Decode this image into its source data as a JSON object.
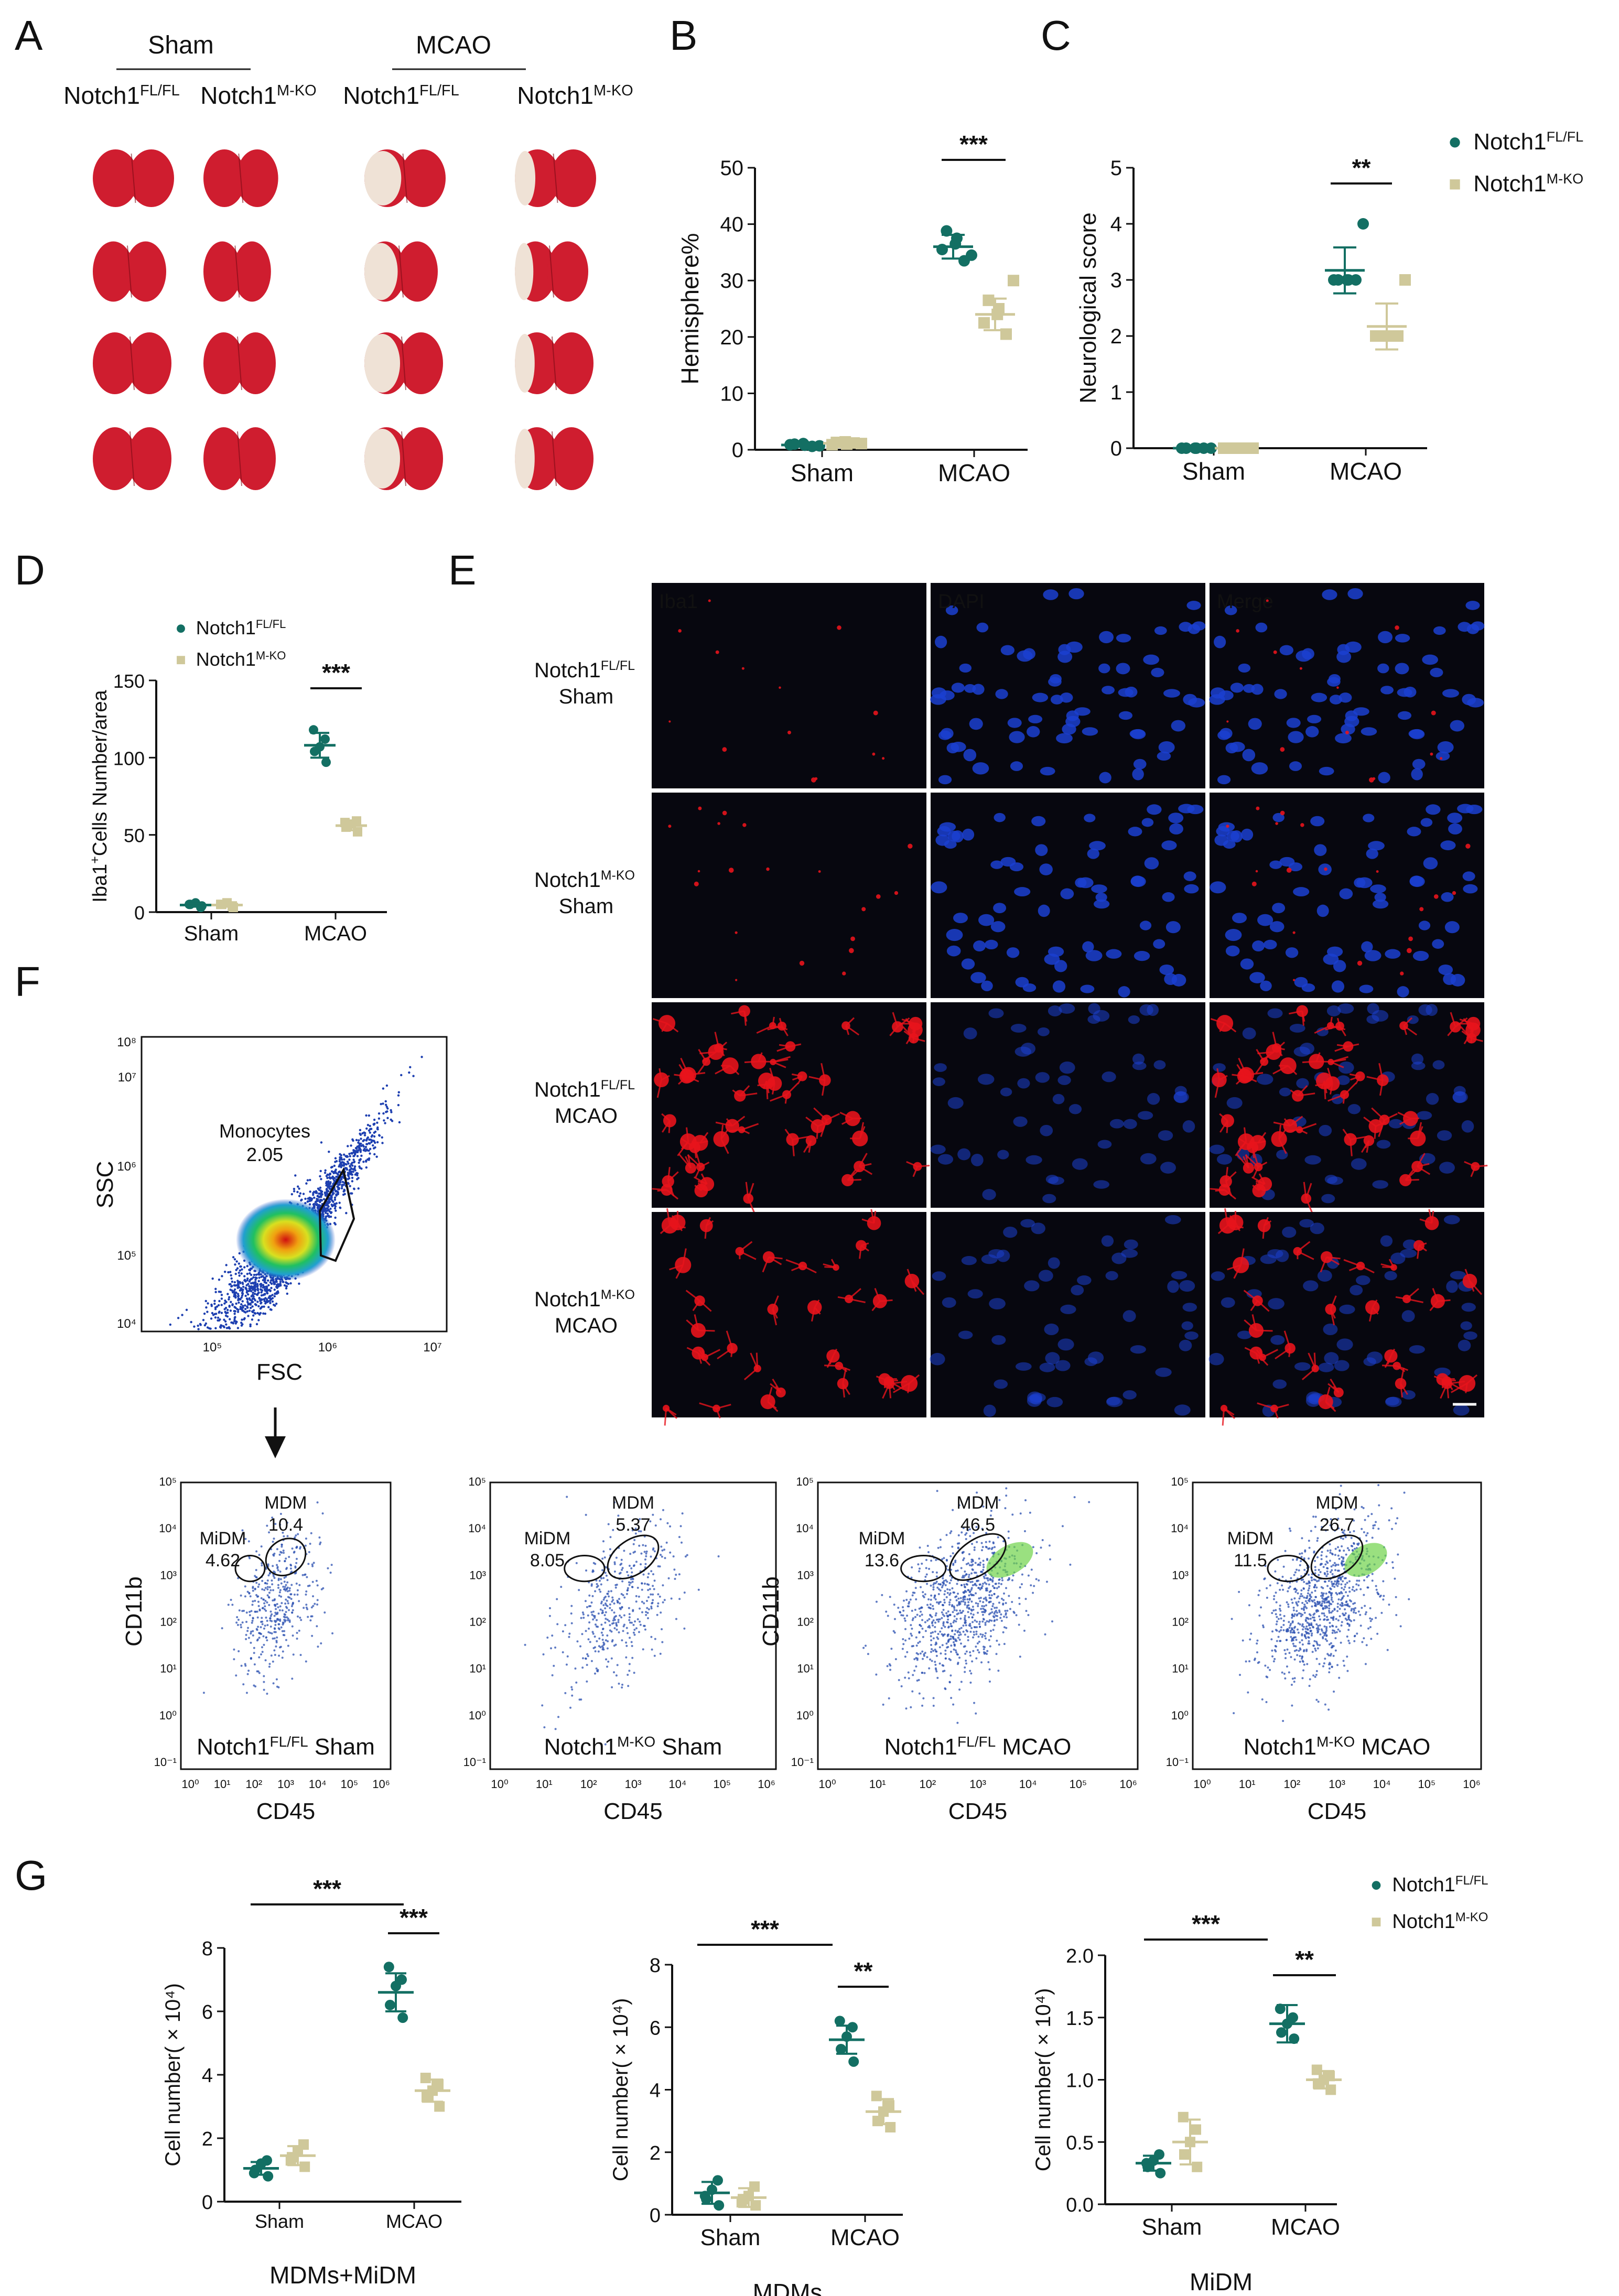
{
  "colors": {
    "teal": "#136f63",
    "tan": "#cfc89a",
    "brain_red": "#cf1d2f",
    "brain_pale": "#efe2d6",
    "micro_bg": "#07070f",
    "iba1": "#e8141c",
    "dapi": "#1b3fd0",
    "merge_label": "#ffffff"
  },
  "panel_labels": [
    "A",
    "B",
    "C",
    "D",
    "E",
    "F",
    "G"
  ],
  "panel_a": {
    "group_sham": "Sham",
    "group_mcao": "MCAO",
    "columns": [
      {
        "base": "Notch1",
        "sup": "FL/FL"
      },
      {
        "base": "Notch1",
        "sup": "M-KO"
      },
      {
        "base": "Notch1",
        "sup": "FL/FL"
      },
      {
        "base": "Notch1",
        "sup": "M-KO"
      }
    ],
    "infarct_fraction": [
      0,
      0,
      0.45,
      0.25
    ]
  },
  "legend": {
    "fl": {
      "base": "Notch1",
      "sup": "FL/FL"
    },
    "ko": {
      "base": "Notch1",
      "sup": "M-KO"
    }
  },
  "chart_data": [
    {
      "panel": "B",
      "type": "scatter",
      "categories": [
        "Sham",
        "MCAO"
      ],
      "ylabel": "Hemisphere%",
      "ylim": [
        0,
        50
      ],
      "yticks": [
        0,
        10,
        20,
        30,
        40,
        50
      ],
      "series": [
        {
          "name": "Notch1FL/FL",
          "values": [
            [
              0.6,
              0.9,
              1.1,
              0.8,
              1.0,
              0.7
            ],
            [
              33.5,
              35.5,
              36.5,
              37.5,
              38.8,
              34.5
            ]
          ],
          "mean": [
            0.85,
            36.0
          ],
          "sd": [
            0.3,
            2.1
          ]
        },
        {
          "name": "Notch1M-KO",
          "values": [
            [
              1.2,
              0.9,
              1.4,
              1.0,
              1.3,
              1.1
            ],
            [
              20.5,
              22.5,
              24.0,
              25.0,
              26.5,
              30.0
            ]
          ],
          "mean": [
            1.15,
            24.0
          ],
          "sd": [
            0.3,
            2.8
          ]
        }
      ],
      "significance": [
        {
          "label": "***"
        }
      ]
    },
    {
      "panel": "C",
      "type": "scatter",
      "categories": [
        "Sham",
        "MCAO"
      ],
      "ylabel": "Neurological score",
      "ylim": [
        0,
        5
      ],
      "yticks": [
        0,
        1,
        2,
        3,
        4,
        5
      ],
      "series": [
        {
          "name": "Notch1FL/FL",
          "values": [
            [
              0,
              0,
              0,
              0,
              0,
              0
            ],
            [
              3,
              3,
              3,
              3,
              3,
              4
            ]
          ],
          "mean": [
            0,
            3.17
          ],
          "sd": [
            0,
            0.41
          ]
        },
        {
          "name": "Notch1M-KO",
          "values": [
            [
              0,
              0,
              0,
              0,
              0,
              0
            ],
            [
              2,
              2,
              2,
              2,
              2,
              3
            ]
          ],
          "mean": [
            0,
            2.17
          ],
          "sd": [
            0,
            0.41
          ]
        }
      ],
      "significance": [
        {
          "label": "**"
        }
      ]
    },
    {
      "panel": "D",
      "type": "scatter",
      "categories": [
        "Sham",
        "MCAO"
      ],
      "ylabel_base": "Iba1",
      "ylabel_sup": "+",
      "ylabel_rest": "Cells Number/area",
      "ylim": [
        0,
        150
      ],
      "yticks": [
        0,
        50,
        100,
        150
      ],
      "series": [
        {
          "name": "Notch1FL/FL",
          "values": [
            [
              4,
              5,
              6,
              3,
              5
            ],
            [
              97,
              104,
              107,
              112,
              118
            ]
          ],
          "mean": [
            4.6,
            108
          ],
          "sd": [
            1.1,
            8
          ]
        },
        {
          "name": "Notch1M-KO",
          "values": [
            [
              3,
              5,
              6,
              4,
              5
            ],
            [
              52,
              55,
              57,
              59,
              58
            ]
          ],
          "mean": [
            4.6,
            56
          ],
          "sd": [
            1.1,
            3
          ]
        }
      ],
      "significance": [
        {
          "label": "***"
        }
      ]
    },
    {
      "panel": "G1",
      "type": "scatter",
      "categories": [
        "Sham",
        "MCAO"
      ],
      "title": "MDMs+MiDM",
      "ylabel": "Cell number( × 10⁴)",
      "ylim": [
        0,
        8
      ],
      "yticks": [
        0,
        2,
        4,
        6,
        8
      ],
      "series": [
        {
          "name": "Notch1FL/FL",
          "values": [
            [
              0.8,
              1.0,
              1.2,
              1.3,
              0.9
            ],
            [
              5.8,
              6.2,
              6.8,
              7.0,
              7.4
            ]
          ],
          "mean": [
            1.05,
            6.6
          ],
          "sd": [
            0.2,
            0.6
          ]
        },
        {
          "name": "Notch1M-KO",
          "values": [
            [
              1.1,
              1.4,
              1.6,
              1.8,
              1.3
            ],
            [
              3.0,
              3.3,
              3.5,
              3.7,
              3.9
            ]
          ],
          "mean": [
            1.45,
            3.5
          ],
          "sd": [
            0.3,
            0.35
          ]
        }
      ],
      "significance": [
        {
          "label": "***"
        },
        {
          "label": "***"
        }
      ]
    },
    {
      "panel": "G2",
      "type": "scatter",
      "categories": [
        "Sham",
        "MCAO"
      ],
      "title": "MDMs",
      "ylabel": "Cell number( × 10⁴)",
      "ylim": [
        0,
        8
      ],
      "yticks": [
        0,
        2,
        4,
        6,
        8
      ],
      "series": [
        {
          "name": "Notch1FL/FL",
          "values": [
            [
              0.3,
              0.5,
              0.8,
              1.1,
              0.6
            ],
            [
              4.9,
              5.3,
              5.7,
              6.0,
              6.2
            ]
          ],
          "mean": [
            0.7,
            5.6
          ],
          "sd": [
            0.35,
            0.45
          ]
        },
        {
          "name": "Notch1M-KO",
          "values": [
            [
              0.3,
              0.5,
              0.6,
              0.9,
              0.4
            ],
            [
              2.8,
              3.0,
              3.3,
              3.5,
              3.8
            ]
          ],
          "mean": [
            0.55,
            3.3
          ],
          "sd": [
            0.3,
            0.4
          ]
        }
      ],
      "significance": [
        {
          "label": "***"
        },
        {
          "label": "**"
        }
      ]
    },
    {
      "panel": "G3",
      "type": "scatter",
      "categories": [
        "Sham",
        "MCAO"
      ],
      "title": "MiDM",
      "ylabel": "Cell number( × 10⁴)",
      "ylim": [
        0,
        2.0
      ],
      "yticks": [
        0,
        0.5,
        1.0,
        1.5,
        2.0
      ],
      "series": [
        {
          "name": "Notch1FL/FL",
          "values": [
            [
              0.25,
              0.3,
              0.35,
              0.4,
              0.33
            ],
            [
              1.33,
              1.38,
              1.45,
              1.5,
              1.57
            ]
          ],
          "mean": [
            0.33,
            1.45
          ],
          "sd": [
            0.06,
            0.15
          ]
        },
        {
          "name": "Notch1M-KO",
          "values": [
            [
              0.3,
              0.4,
              0.5,
              0.6,
              0.7
            ],
            [
              0.92,
              0.97,
              1.0,
              1.03,
              1.08
            ]
          ],
          "mean": [
            0.5,
            1.0
          ],
          "sd": [
            0.18,
            0.07
          ]
        }
      ],
      "significance": [
        {
          "label": "***"
        },
        {
          "label": "**"
        }
      ]
    }
  ],
  "panel_e": {
    "columns": [
      "Iba1",
      "DAPI",
      "Merge"
    ],
    "rows": [
      {
        "base": "Notch1",
        "sup": "FL/FL",
        "cond": "Sham",
        "iba1_density": 0.15
      },
      {
        "base": "Notch1",
        "sup": "M-KO",
        "cond": "Sham",
        "iba1_density": 0.3
      },
      {
        "base": "Notch1",
        "sup": "FL/FL",
        "cond": "MCAO",
        "iba1_density": 1.0
      },
      {
        "base": "Notch1",
        "sup": "M-KO",
        "cond": "MCAO",
        "iba1_density": 0.6
      }
    ]
  },
  "panel_f": {
    "main": {
      "xlabel": "FSC",
      "ylabel": "SSC",
      "gate_name": "Monocytes",
      "gate_value": "2.05",
      "xticks": [
        "10⁵",
        "10⁶",
        "10⁷"
      ],
      "yticks": [
        "10⁴",
        "10⁵",
        "10⁶",
        "10⁷",
        "10⁸"
      ]
    },
    "plots": [
      {
        "title_base": "Notch1",
        "title_sup": "FL/FL",
        "title_cond": "Sham",
        "midm_value": "4.62",
        "mdm_value": "10.4",
        "show_ylabel": true
      },
      {
        "title_base": "Notch1",
        "title_sup": "M-KO",
        "title_cond": "Sham",
        "midm_value": "8.05",
        "mdm_value": "5.37",
        "show_ylabel": false
      },
      {
        "title_base": "Notch1",
        "title_sup": "FL/FL",
        "title_cond": "MCAO",
        "midm_value": "13.6",
        "mdm_value": "46.5",
        "show_ylabel": true
      },
      {
        "title_base": "Notch1",
        "title_sup": "M-KO",
        "title_cond": "MCAO",
        "midm_value": "11.5",
        "mdm_value": "26.7",
        "show_ylabel": false
      }
    ],
    "gate_midm": "MiDM",
    "gate_mdm": "MDM",
    "xlabel": "CD45",
    "ylabel": "CD11b",
    "xticks": [
      "10⁰",
      "10¹",
      "10²",
      "10³",
      "10⁴",
      "10⁵",
      "10⁶"
    ],
    "yticks": [
      "10⁻¹",
      "10⁰",
      "10¹",
      "10²",
      "10³",
      "10⁴",
      "10⁵"
    ]
  }
}
